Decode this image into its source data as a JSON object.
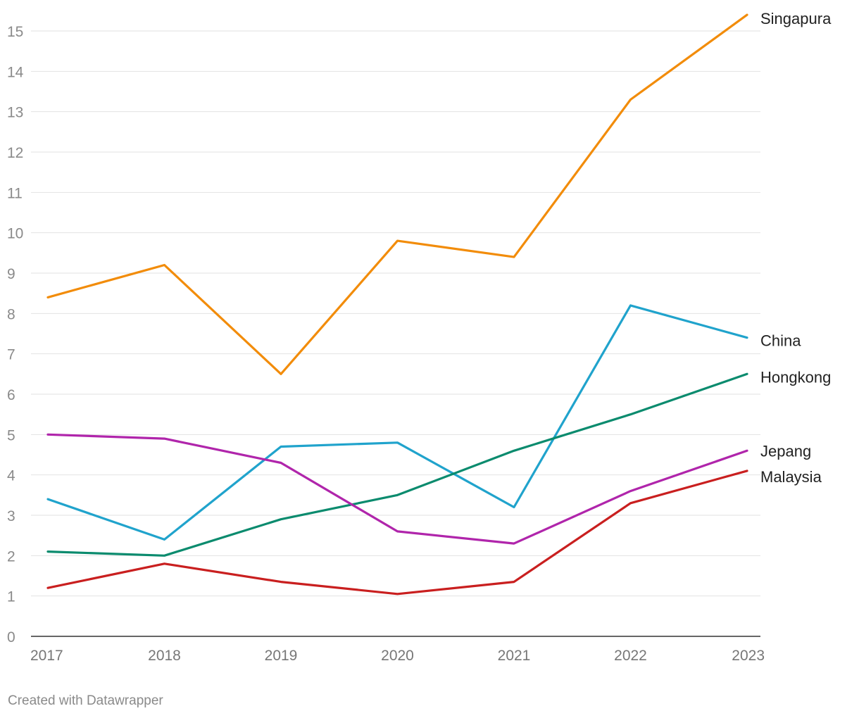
{
  "chart_data": {
    "type": "line",
    "title": "",
    "xlabel": "",
    "ylabel": "",
    "x": [
      2017,
      2018,
      2019,
      2020,
      2021,
      2022,
      2023
    ],
    "ylim": [
      0,
      15
    ],
    "y_ticks": [
      0,
      1,
      2,
      3,
      4,
      5,
      6,
      7,
      8,
      9,
      10,
      11,
      12,
      13,
      14,
      15
    ],
    "grid": true,
    "legend": "direct labels at line ends (right)",
    "series": [
      {
        "name": "Singapura",
        "color": "#f28c0a",
        "values": [
          8.4,
          9.2,
          6.5,
          9.8,
          9.4,
          13.3,
          15.4
        ]
      },
      {
        "name": "China",
        "color": "#20a3cc",
        "values": [
          3.4,
          2.4,
          4.7,
          4.8,
          3.2,
          8.2,
          7.4
        ]
      },
      {
        "name": "Hongkong",
        "color": "#0b8b6e",
        "values": [
          2.1,
          2.0,
          2.9,
          3.5,
          4.6,
          5.5,
          6.5
        ]
      },
      {
        "name": "Jepang",
        "color": "#b025ab",
        "values": [
          5.0,
          4.9,
          4.3,
          2.6,
          2.3,
          3.6,
          4.6
        ]
      },
      {
        "name": "Malaysia",
        "color": "#c91f1f",
        "values": [
          1.2,
          1.8,
          1.35,
          1.05,
          1.35,
          3.3,
          4.1
        ]
      }
    ]
  },
  "footer": {
    "credit": "Created with Datawrapper"
  }
}
